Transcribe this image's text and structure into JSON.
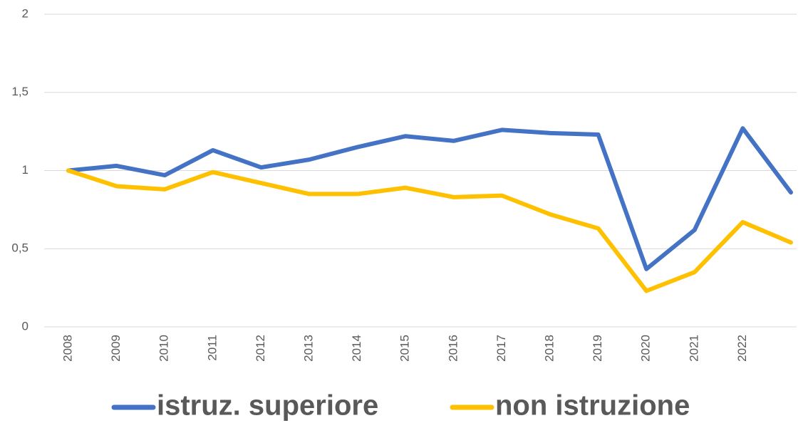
{
  "chart_data": {
    "type": "line",
    "categories": [
      "2008",
      "2009",
      "2010",
      "2011",
      "2012",
      "2013",
      "2014",
      "2015",
      "2016",
      "2017",
      "2018",
      "2019",
      "2020",
      "2021",
      "2022",
      null
    ],
    "series": [
      {
        "name": "istruz. superiore",
        "color": "#4472c4",
        "values": [
          1.0,
          1.03,
          0.97,
          1.13,
          1.02,
          1.07,
          1.15,
          1.22,
          1.19,
          1.26,
          1.24,
          1.23,
          0.37,
          0.62,
          1.27,
          0.86
        ]
      },
      {
        "name": "non istruzione",
        "color": "#ffc000",
        "values": [
          1.0,
          0.9,
          0.88,
          0.99,
          0.92,
          0.85,
          0.85,
          0.89,
          0.83,
          0.84,
          0.72,
          0.63,
          0.23,
          0.35,
          0.67,
          0.54
        ]
      }
    ],
    "ylim": [
      0,
      2
    ],
    "yticks": [
      0,
      {
        "value": 0.5,
        "label": "0,5"
      },
      1,
      {
        "value": 1.5,
        "label": "1,5"
      },
      2
    ],
    "grid": true,
    "legend": "bottom"
  }
}
